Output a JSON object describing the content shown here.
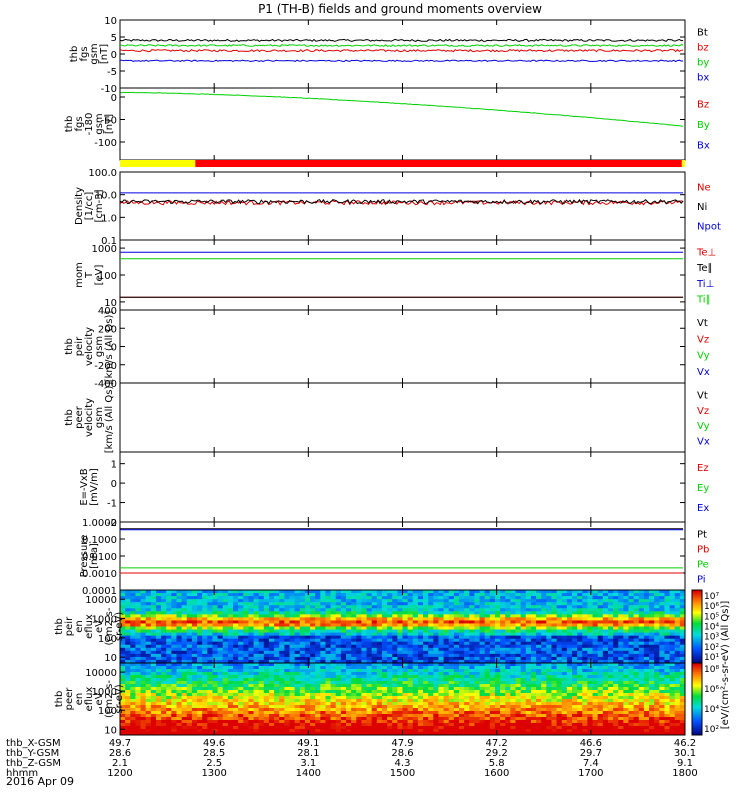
{
  "title": "P1 (TH-B) fields and ground moments overview",
  "date_label": "2016 Apr 09",
  "time_range": {
    "start": "1200",
    "end": "1800"
  },
  "colors": {
    "black": "#000000",
    "red": "#e00000",
    "green": "#00d000",
    "blue": "#0000e0",
    "yellow": "#ffff00",
    "bar_red": "#ff0000"
  },
  "mode_bar": {
    "segments": [
      {
        "from": "1200",
        "to": "1248",
        "color": "yellow"
      },
      {
        "from": "1248",
        "to": "1758",
        "color": "bar_red"
      },
      {
        "from": "1758",
        "to": "1800",
        "color": "yellow"
      }
    ]
  },
  "chart_data": [
    {
      "type": "line",
      "id": "fgs",
      "ylabel": [
        "thb",
        "fgs",
        "gsm",
        "[nT]"
      ],
      "ylim": [
        -10,
        10
      ],
      "yticks": [
        "10",
        "5",
        "0",
        "-5",
        "-10"
      ],
      "series": [
        {
          "name": "Bt",
          "color": "black"
        },
        {
          "name": "bz",
          "color": "red"
        },
        {
          "name": "by",
          "color": "green"
        },
        {
          "name": "bx",
          "color": "blue"
        }
      ]
    },
    {
      "type": "line",
      "id": "fgs-orb",
      "ylabel": [
        "thb",
        "fgs",
        "-180",
        "gsm",
        "[nT]"
      ],
      "ylim": [
        -140,
        20
      ],
      "yticks": [
        "0",
        "-50",
        "-100"
      ],
      "series": [
        {
          "name": "Bz",
          "color": "red"
        },
        {
          "name": "By",
          "color": "green"
        },
        {
          "name": "Bx",
          "color": "blue"
        }
      ]
    },
    {
      "type": "line",
      "id": "density",
      "scale": "log",
      "ylabel": [
        "Density",
        "[1/cc]",
        "[cm-3]"
      ],
      "ylim": [
        0.1,
        100
      ],
      "yticks": [
        "100.0",
        "10.0",
        "1.0",
        "0.1"
      ],
      "series": [
        {
          "name": "Ne",
          "color": "red"
        },
        {
          "name": "Ni",
          "color": "black"
        },
        {
          "name": "Npot",
          "color": "blue"
        }
      ]
    },
    {
      "type": "line",
      "id": "temperature",
      "scale": "log",
      "ylabel": [
        "mom",
        "T",
        "[eV]"
      ],
      "ylim": [
        5,
        2000
      ],
      "yticks": [
        "1000",
        "100",
        "10"
      ],
      "series": [
        {
          "name": "Te⊥",
          "color": "red"
        },
        {
          "name": "Te∥",
          "color": "black"
        },
        {
          "name": "Ti⊥",
          "color": "blue"
        },
        {
          "name": "Ti∥",
          "color": "green"
        }
      ]
    },
    {
      "type": "line",
      "id": "peir-velocity",
      "ylabel": [
        "thb",
        "peir",
        "velocity",
        "gsm",
        "[km/s (All Qs)]"
      ],
      "ylim": [
        -400,
        400
      ],
      "yticks": [
        "400",
        "200",
        "0",
        "-200",
        "-400"
      ],
      "series": [
        {
          "name": "Vt",
          "color": "black"
        },
        {
          "name": "Vz",
          "color": "red"
        },
        {
          "name": "Vy",
          "color": "green"
        },
        {
          "name": "Vx",
          "color": "blue"
        }
      ]
    },
    {
      "type": "line",
      "id": "peer-velocity",
      "ylabel": [
        "thb",
        "peer",
        "velocity",
        "gsm",
        "[km/s (All Qs)]"
      ],
      "ylim": [],
      "yticks": [],
      "series": [
        {
          "name": "Vt",
          "color": "black"
        },
        {
          "name": "Vz",
          "color": "red"
        },
        {
          "name": "Vy",
          "color": "green"
        },
        {
          "name": "Vx",
          "color": "blue"
        }
      ]
    },
    {
      "type": "line",
      "id": "efield",
      "ylabel": [
        "E=-VxB",
        "[mV/m]"
      ],
      "ylim": [
        -2,
        1.6
      ],
      "yticks": [
        "1",
        "0",
        "-1",
        "-2"
      ],
      "series": [
        {
          "name": "Ez",
          "color": "red"
        },
        {
          "name": "Ey",
          "color": "green"
        },
        {
          "name": "Ex",
          "color": "blue"
        }
      ]
    },
    {
      "type": "line",
      "id": "pressure",
      "scale": "log",
      "ylabel": [
        "Pressure",
        "[nPa]"
      ],
      "ylim": [
        0.0001,
        1
      ],
      "yticks": [
        "1.0000",
        "0.1000",
        "0.0100",
        "0.0010",
        "0.0001"
      ],
      "series": [
        {
          "name": "Pt",
          "color": "black"
        },
        {
          "name": "Pb",
          "color": "red"
        },
        {
          "name": "Pe",
          "color": "green"
        },
        {
          "name": "Pi",
          "color": "blue"
        }
      ]
    },
    {
      "type": "heatmap",
      "id": "peir-en-eflux",
      "ylabel": [
        "thb",
        "peir",
        "en",
        "eflux",
        "eV",
        "(cm2-s-",
        "sr-eV)"
      ],
      "ylim": [
        5,
        30000
      ],
      "yticks": [
        "10000",
        "1000",
        "100",
        "10"
      ],
      "colorbar": {
        "ticks": [
          "10⁷",
          "10⁶",
          "10⁵",
          "10⁴",
          "10³",
          "10²",
          "10¹"
        ],
        "label": "[eV/(cm²-s-sr-eV) (All Qs)]"
      }
    },
    {
      "type": "heatmap",
      "id": "peer-en-eflux",
      "ylabel": [
        "thb",
        "peer",
        "en",
        "eflux",
        "eV",
        "(cm2-s-",
        "sr-eV)"
      ],
      "ylim": [
        5,
        30000
      ],
      "yticks": [
        "10000",
        "1000",
        "100",
        "10"
      ],
      "colorbar": {
        "ticks": [
          "10⁸",
          "10⁶",
          "10⁴",
          "10²"
        ],
        "label": "[eV/(cm²-s-sr-eV)]"
      }
    }
  ],
  "x_axis": {
    "rows": [
      {
        "label": "thb_X-GSM",
        "values": [
          "49.7",
          "49.6",
          "49.1",
          "47.9",
          "47.2",
          "46.6",
          "46.2"
        ]
      },
      {
        "label": "thb_Y-GSM",
        "values": [
          "28.6",
          "28.5",
          "28.1",
          "28.6",
          "29.2",
          "29.7",
          "30.1"
        ]
      },
      {
        "label": "thb_Z-GSM",
        "values": [
          "2.1",
          "2.5",
          "3.1",
          "4.3",
          "5.8",
          "7.4",
          "9.1"
        ]
      },
      {
        "label": "hhmm",
        "values": [
          "1200",
          "1300",
          "1400",
          "1500",
          "1600",
          "1700",
          "1800"
        ]
      }
    ]
  }
}
